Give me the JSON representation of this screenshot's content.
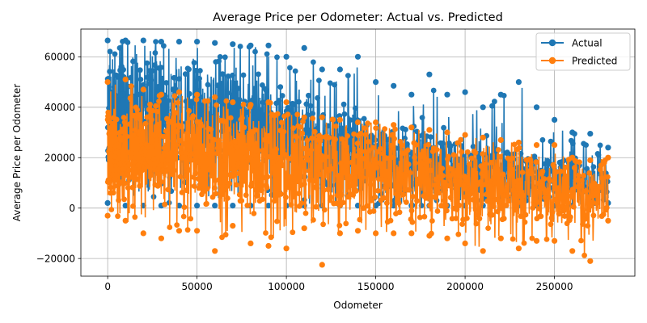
{
  "chart_data": {
    "type": "line",
    "title": "Average Price per Odometer: Actual vs. Predicted",
    "xlabel": "Odometer",
    "ylabel": "Average Price per Odometer",
    "xlim": [
      -15000,
      295000
    ],
    "ylim": [
      -27000,
      71000
    ],
    "x_ticks": [
      0,
      50000,
      100000,
      150000,
      200000,
      250000
    ],
    "x_tick_labels": [
      "0",
      "50000",
      "100000",
      "150000",
      "200000",
      "250000"
    ],
    "y_ticks": [
      -20000,
      0,
      20000,
      40000,
      60000
    ],
    "y_tick_labels": [
      "−20000",
      "0",
      "20000",
      "40000",
      "60000"
    ],
    "grid": true,
    "legend_position": "top-right",
    "series": [
      {
        "name": "Actual",
        "color": "#1f77b4",
        "x": [
          0,
          10000,
          20000,
          30000,
          40000,
          50000,
          60000,
          70000,
          80000,
          90000,
          100000,
          110000,
          120000,
          130000,
          140000,
          150000,
          160000,
          170000,
          180000,
          190000,
          200000,
          210000,
          220000,
          230000,
          240000,
          250000,
          260000,
          270000,
          280000
        ],
        "min": [
          2000,
          1000,
          1000,
          1000,
          1000,
          1000,
          1000,
          1000,
          1000,
          1000,
          1000,
          1000,
          1000,
          1000,
          1000,
          1000,
          1000,
          1000,
          1000,
          1000,
          1000,
          1000,
          1000,
          1000,
          1000,
          1000,
          1000,
          1000,
          2000
        ],
        "typ_low": [
          15000,
          20000,
          20000,
          18000,
          18000,
          17000,
          16000,
          15000,
          14000,
          12000,
          10000,
          10000,
          9000,
          8000,
          8000,
          7000,
          6000,
          6000,
          5000,
          5000,
          5000,
          4000,
          4000,
          4000,
          3000,
          3000,
          3000,
          3000,
          3000
        ],
        "typ_high": [
          55000,
          58000,
          58000,
          57000,
          57000,
          56000,
          55000,
          53000,
          50000,
          47000,
          44000,
          42000,
          40000,
          38000,
          36000,
          35000,
          33000,
          31000,
          29000,
          27000,
          26000,
          25000,
          24000,
          23000,
          21000,
          20000,
          19000,
          18000,
          15000
        ],
        "max": [
          66500,
          66500,
          66500,
          66000,
          66000,
          66000,
          65500,
          65000,
          64500,
          64500,
          60000,
          63500,
          55000,
          55000,
          60000,
          50000,
          48500,
          45000,
          53000,
          45000,
          46000,
          40000,
          45000,
          50000,
          40000,
          35000,
          30000,
          29500,
          24000
        ]
      },
      {
        "name": "Predicted",
        "color": "#ff7f0e",
        "x": [
          0,
          10000,
          20000,
          30000,
          40000,
          50000,
          60000,
          70000,
          80000,
          90000,
          100000,
          110000,
          120000,
          130000,
          140000,
          150000,
          160000,
          170000,
          180000,
          190000,
          200000,
          210000,
          220000,
          230000,
          240000,
          250000,
          260000,
          270000,
          280000
        ],
        "min": [
          -3000,
          -5000,
          -10000,
          -12000,
          -9000,
          -9000,
          -17000,
          -7000,
          -14000,
          -15000,
          -16000,
          -8000,
          -22500,
          -10000,
          -9000,
          -10000,
          -10000,
          -10000,
          -11000,
          -12000,
          -14000,
          -17000,
          -12000,
          -16000,
          -13000,
          -13000,
          -17000,
          -21000,
          -5000
        ],
        "typ_low": [
          5000,
          8000,
          8000,
          7000,
          6000,
          5000,
          4000,
          3000,
          2000,
          1000,
          0,
          -1000,
          -2000,
          -2000,
          -2000,
          -3000,
          -3000,
          -3000,
          -4000,
          -4000,
          -5000,
          -5000,
          -5000,
          -6000,
          -6000,
          -6000,
          -7000,
          -7000,
          -3000
        ],
        "typ_high": [
          38000,
          40000,
          40000,
          39000,
          38000,
          38000,
          37000,
          36000,
          35000,
          34000,
          33000,
          32000,
          31000,
          30000,
          30000,
          29000,
          28000,
          27000,
          26000,
          25000,
          24000,
          23000,
          22000,
          21000,
          20000,
          19000,
          18000,
          17000,
          15000
        ],
        "max": [
          50000,
          51000,
          47000,
          45000,
          46000,
          45000,
          44000,
          42000,
          41000,
          42000,
          42000,
          36000,
          36000,
          35000,
          34000,
          34000,
          33000,
          32000,
          31000,
          30000,
          29000,
          28000,
          27000,
          26000,
          25000,
          25000,
          20000,
          19000,
          20000
        ]
      }
    ]
  }
}
